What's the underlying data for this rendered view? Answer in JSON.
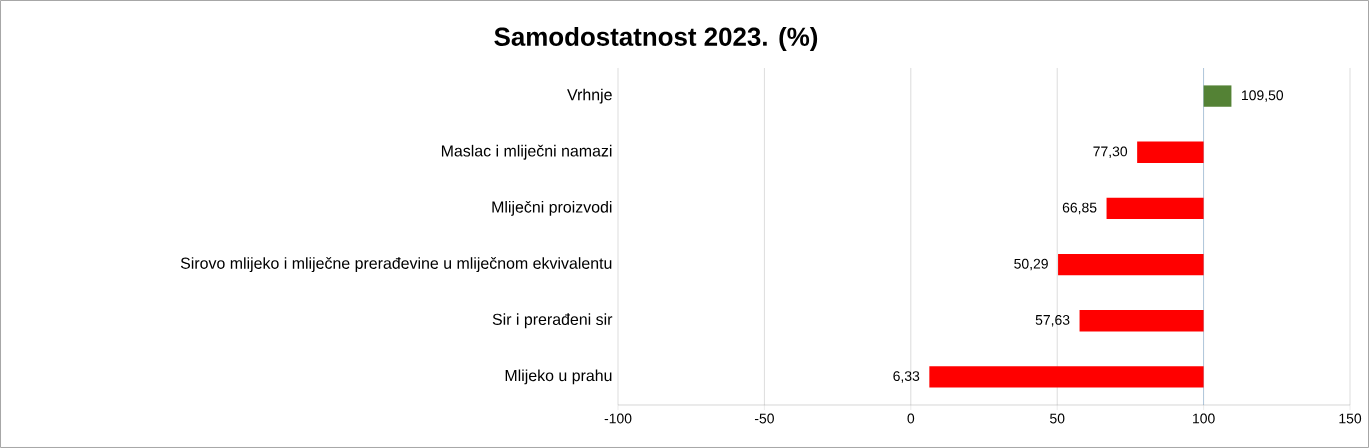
{
  "chart_data": {
    "type": "bar",
    "orientation": "horizontal",
    "title": "Samodostatnost 2023. (%)",
    "categories": [
      "Vrhnje",
      "Maslac i mliječni namazi",
      "Mliječni proizvodi",
      "Sirovo mlijeko i mliječne prerađevine u mliječnom ekvivalentu",
      "Sir i prerađeni sir",
      "Mlijeko u prahu"
    ],
    "base": [
      100,
      100,
      100,
      100,
      100,
      100
    ],
    "values": [
      9.5,
      -22.7,
      -33.15,
      -49.71,
      -42.37,
      -93.67
    ],
    "value_labels": [
      "109,50",
      "77,30",
      "66,85",
      "50,29",
      "57,63",
      "6,33"
    ],
    "colors": [
      "#548235",
      "#ff0000",
      "#ff0000",
      "#ff0000",
      "#ff0000",
      "#ff0000"
    ],
    "ref_lines": [
      {
        "axis": "x",
        "value": 100,
        "color": "#5b9bd5"
      }
    ],
    "xlim": [
      -100,
      150
    ],
    "xticks": [
      -100,
      -50,
      0,
      50,
      100,
      150
    ],
    "grid": "x"
  }
}
